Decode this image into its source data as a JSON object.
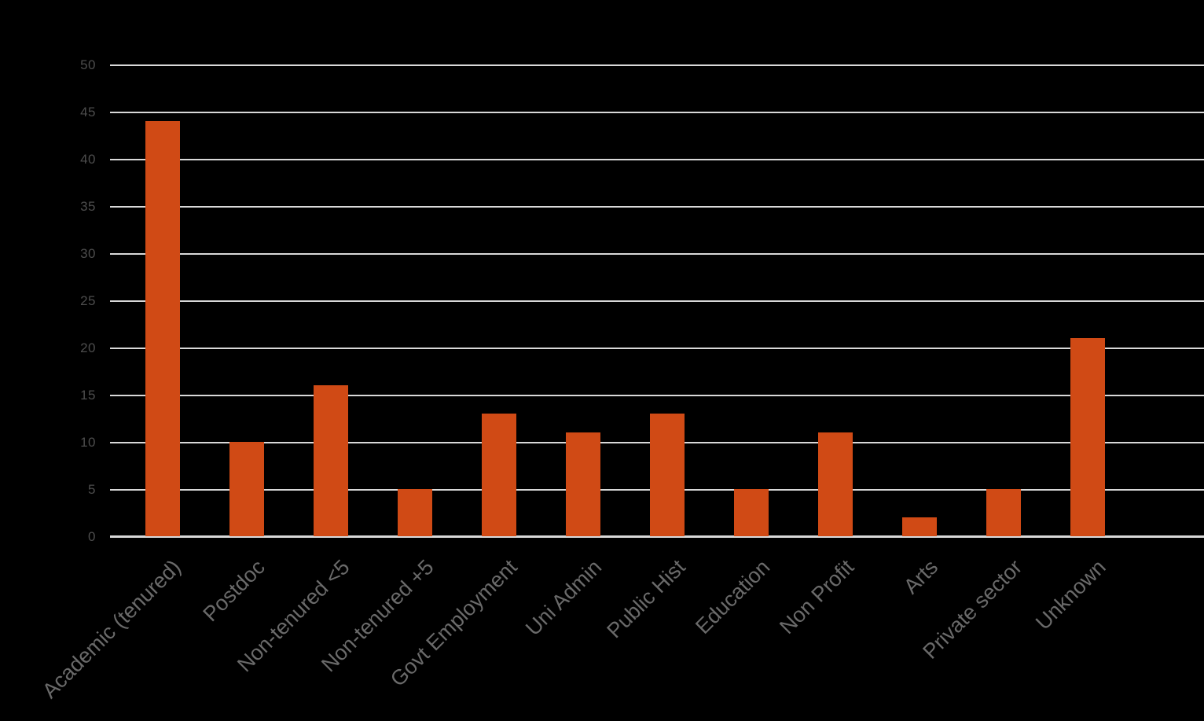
{
  "chart_data": {
    "type": "bar",
    "title": "",
    "xlabel": "",
    "ylabel": "",
    "categories": [
      "Academic (tenured)",
      "Postdoc",
      "Non-tenured <5",
      "Non-tenured +5",
      "Govt Employment",
      "Uni Admin",
      "Public Hist",
      "Education",
      "Non Profit",
      "Arts",
      "Private sector",
      "Unknown"
    ],
    "values": [
      44,
      10,
      16,
      5,
      13,
      11,
      13,
      5,
      11,
      2,
      5,
      21
    ],
    "ylim": [
      0,
      50
    ],
    "yticks": [
      0,
      5,
      10,
      15,
      20,
      25,
      30,
      35,
      40,
      45,
      50
    ],
    "grid": true,
    "legend": false,
    "colors": {
      "background": "#000000",
      "bar": "#D04A15",
      "gridline": "#D9D9D9",
      "axis_line": "#D9D9D9",
      "ytick_label": "#4D4D4D",
      "xtick_label": "#6A6A6A"
    }
  }
}
